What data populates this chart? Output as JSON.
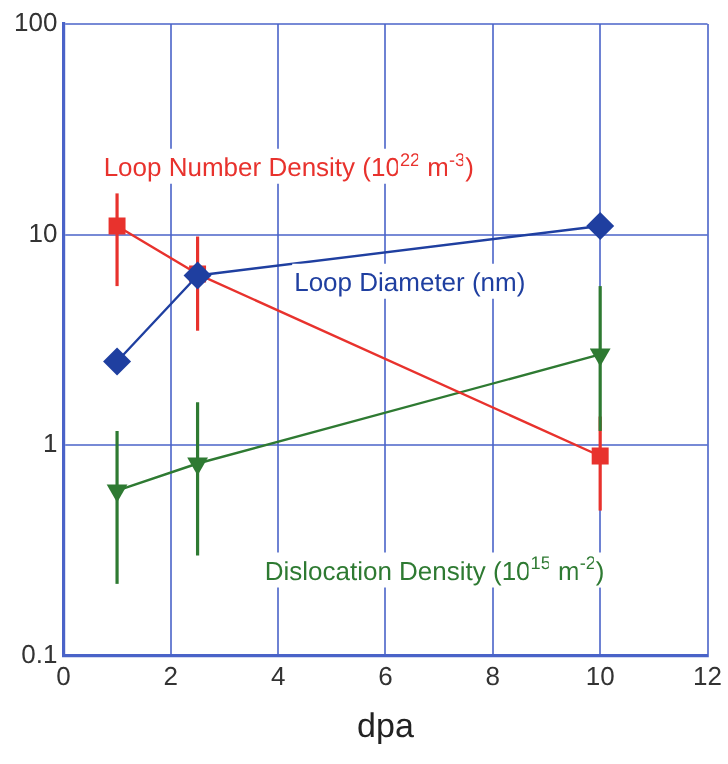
{
  "chart_data": {
    "type": "line",
    "xlabel": "dpa",
    "x": [
      1,
      2.5,
      10
    ],
    "series": [
      {
        "name": "Loop Number Density (10$^{22}$ m$^{-3}$)",
        "color": "#e8322d",
        "marker": "square",
        "values": [
          11,
          6.5,
          0.89
        ],
        "errors": [
          [
            5.7,
            15.7
          ],
          [
            3.5,
            9.8
          ],
          [
            0.49,
            1.37
          ]
        ]
      },
      {
        "name": "Loop Diameter (nm)",
        "color": "#1f3fa0",
        "marker": "diamond",
        "values": [
          2.5,
          6.4,
          11
        ]
      },
      {
        "name": "Dislocation Density (10$^{15}$ m$^{-2}$)",
        "color": "#2e7a32",
        "marker": "triangle",
        "values": [
          0.61,
          0.82,
          2.7
        ],
        "errors": [
          [
            0.22,
            1.17
          ],
          [
            0.3,
            1.6
          ],
          [
            1.17,
            5.7
          ]
        ]
      }
    ],
    "xlim": [
      0,
      12
    ],
    "xticks": [
      0,
      2,
      4,
      6,
      8,
      10,
      12
    ],
    "log": "y",
    "ylim": [
      0.1,
      100
    ],
    "yticks": [
      0.1,
      1,
      10,
      100
    ],
    "grid": true,
    "legend": false,
    "line_style": "solid"
  }
}
